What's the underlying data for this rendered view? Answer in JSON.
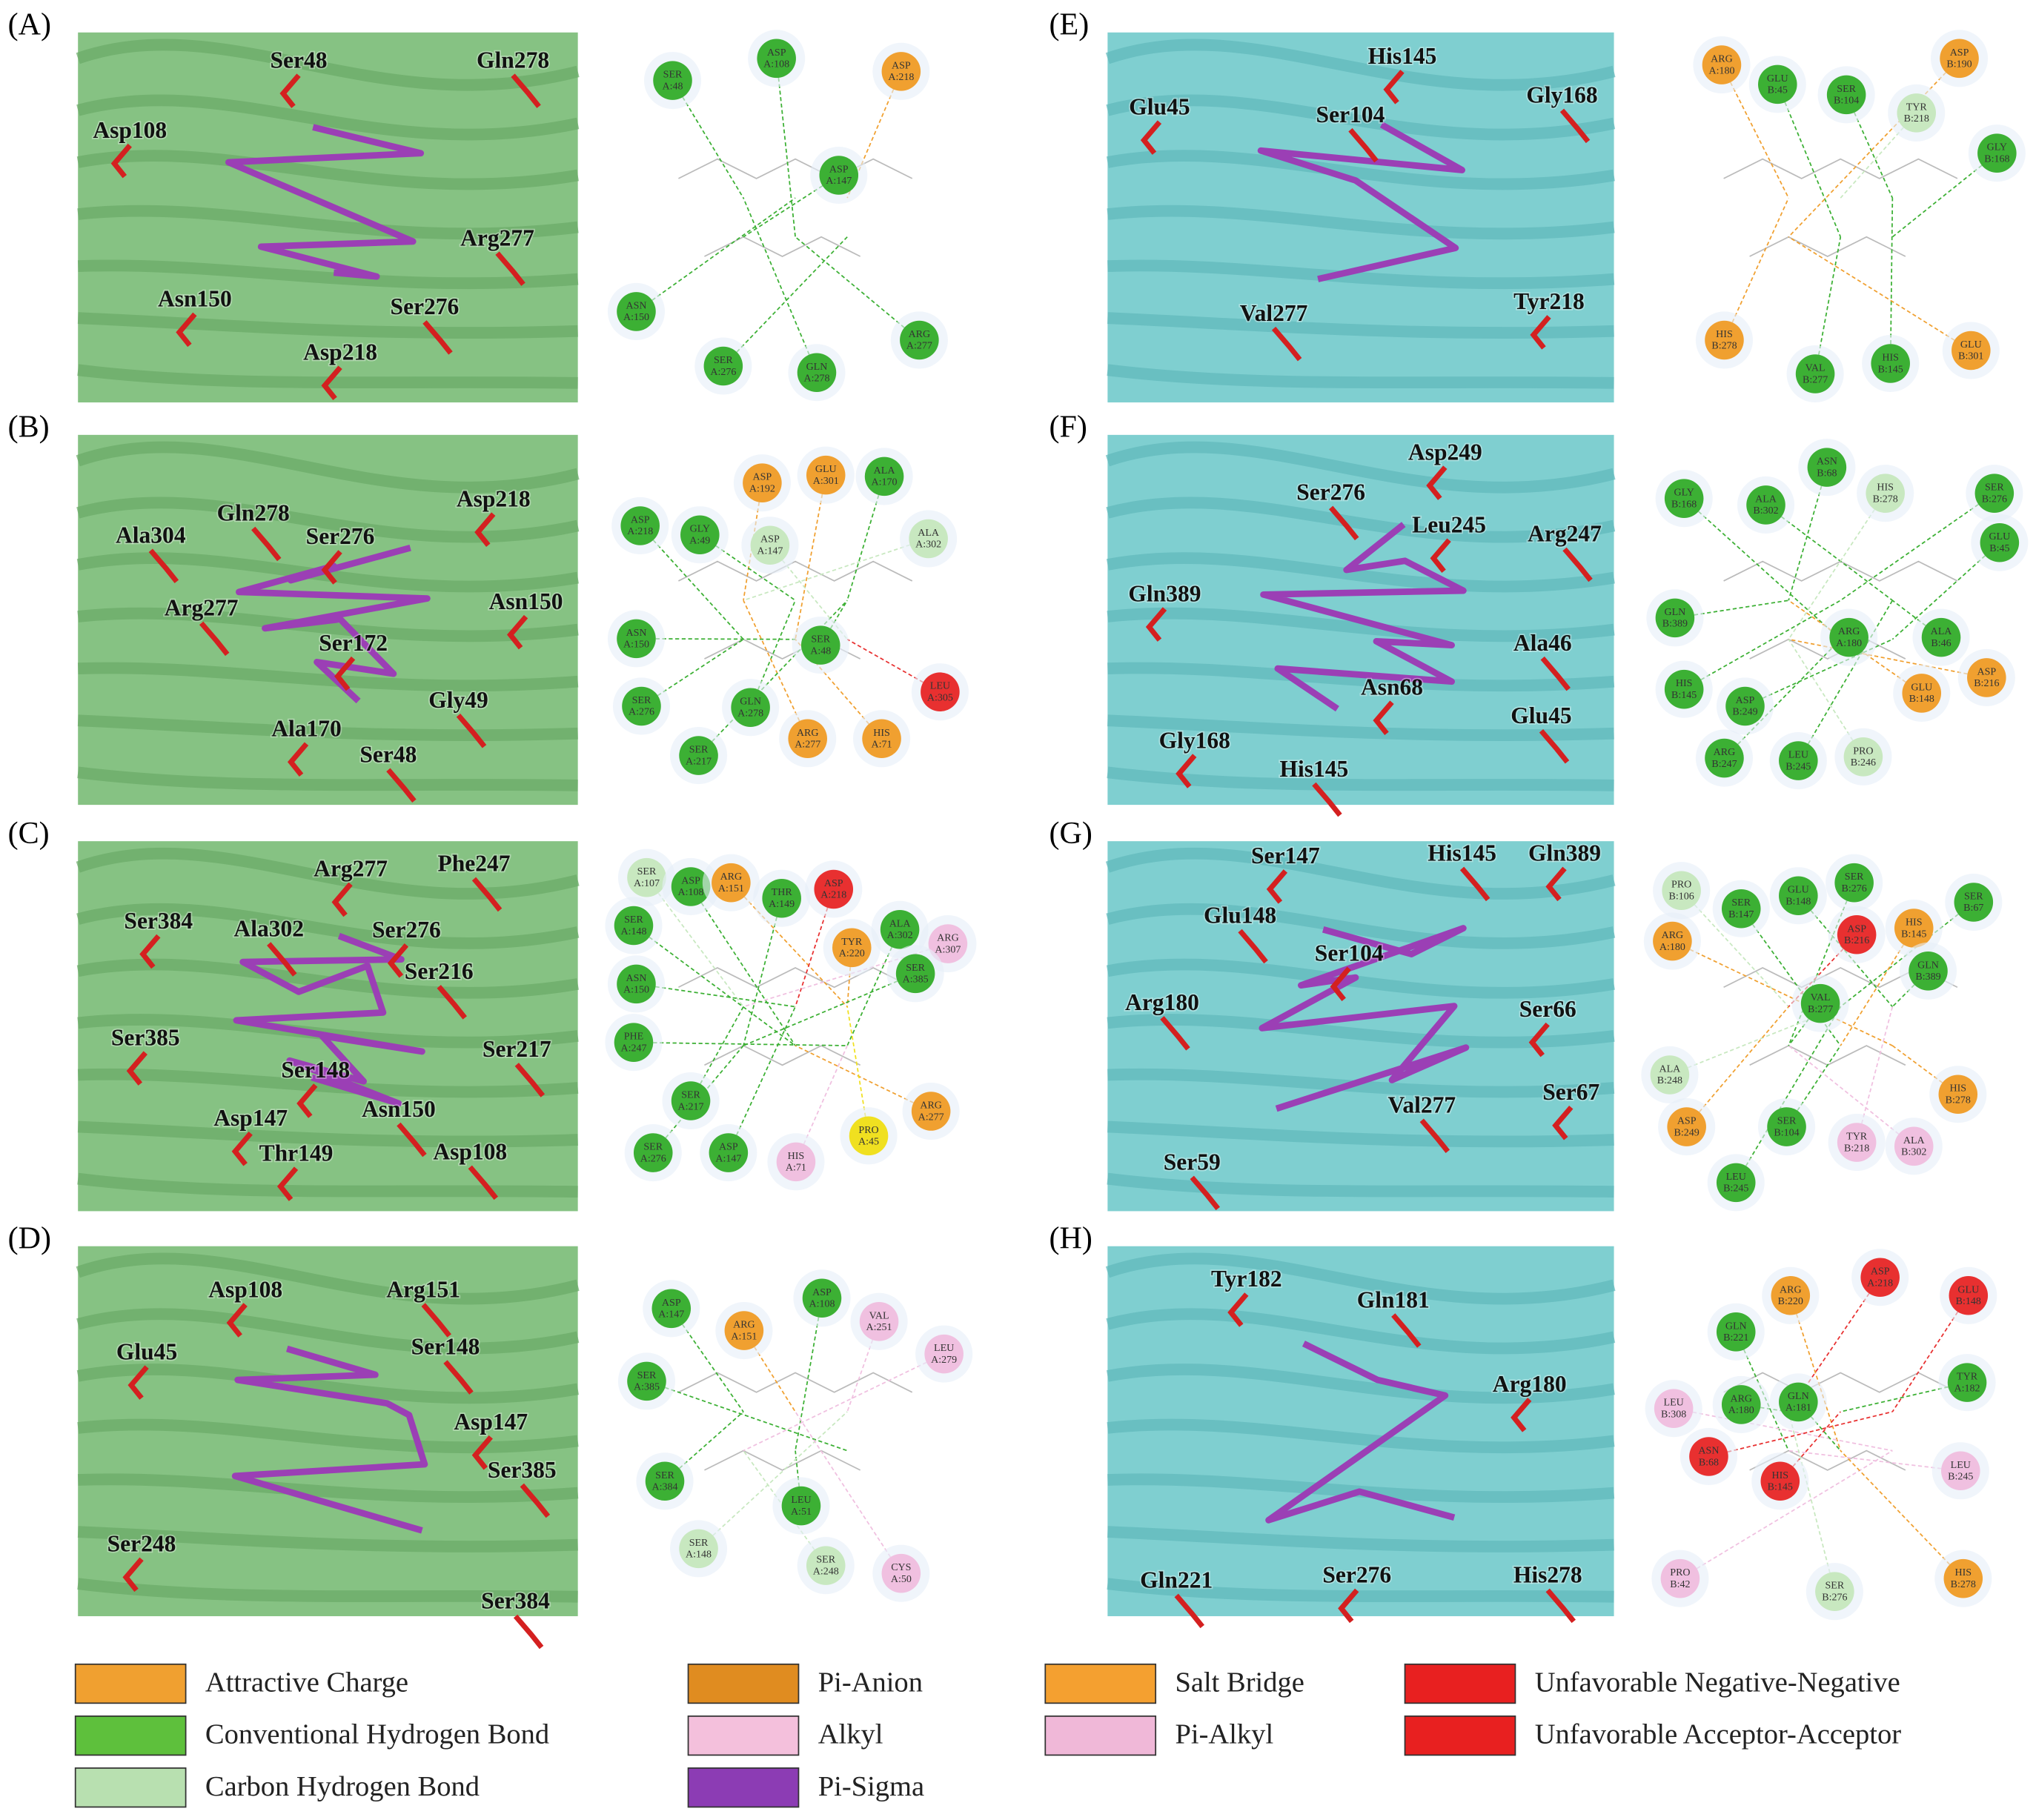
{
  "panels": [
    {
      "label": "(A)",
      "residues": [
        "Ser48",
        "Gln278",
        "Asp108",
        "Arg277",
        "Asn150",
        "Ser276",
        "Asp218"
      ],
      "interactions": [
        {
          "res": "SER",
          "site": "A:48",
          "color": "#3cb034"
        },
        {
          "res": "ASP",
          "site": "A:108",
          "color": "#3cb034"
        },
        {
          "res": "ASP",
          "site": "A:218",
          "color": "#f0a030"
        },
        {
          "res": "ASP",
          "site": "A:147",
          "color": "#3cb034"
        },
        {
          "res": "ASN",
          "site": "A:150",
          "color": "#3cb034"
        },
        {
          "res": "SER",
          "site": "A:276",
          "color": "#3cb034"
        },
        {
          "res": "GLN",
          "site": "A:278",
          "color": "#3cb034"
        },
        {
          "res": "ARG",
          "site": "A:277",
          "color": "#3cb034"
        }
      ]
    },
    {
      "label": "(B)",
      "residues": [
        "Asp218",
        "Gln278",
        "Ser276",
        "Ala304",
        "Asn150",
        "Arg277",
        "Ser172",
        "Gly49",
        "Ala170",
        "Ser48"
      ],
      "interactions": [
        {
          "res": "ASP",
          "site": "A:192",
          "color": "#f0a030"
        },
        {
          "res": "GLU",
          "site": "A:301",
          "color": "#f0a030"
        },
        {
          "res": "ALA",
          "site": "A:170",
          "color": "#3cb034"
        },
        {
          "res": "ASP",
          "site": "A:218",
          "color": "#3cb034"
        },
        {
          "res": "GLY",
          "site": "A:49",
          "color": "#3cb034"
        },
        {
          "res": "ASP",
          "site": "A:147",
          "color": "#c8e8c0"
        },
        {
          "res": "ALA",
          "site": "A:302",
          "color": "#c8e8c0"
        },
        {
          "res": "ASN",
          "site": "A:150",
          "color": "#3cb034"
        },
        {
          "res": "SER",
          "site": "A:48",
          "color": "#3cb034"
        },
        {
          "res": "SER",
          "site": "A:276",
          "color": "#3cb034"
        },
        {
          "res": "GLN",
          "site": "A:278",
          "color": "#3cb034"
        },
        {
          "res": "LEU",
          "site": "A:305",
          "color": "#e83030"
        },
        {
          "res": "ARG",
          "site": "A:277",
          "color": "#f0a030"
        },
        {
          "res": "HIS",
          "site": "A:71",
          "color": "#f0a030"
        },
        {
          "res": "SER",
          "site": "A:217",
          "color": "#3cb034"
        }
      ]
    },
    {
      "label": "(C)",
      "residues": [
        "Arg277",
        "Phe247",
        "Ser384",
        "Ala302",
        "Ser276",
        "Ser216",
        "Ser385",
        "Ser217",
        "Ser148",
        "Asn150",
        "Asp147",
        "Asp108",
        "Thr149"
      ],
      "interactions": [
        {
          "res": "SER",
          "site": "A:107",
          "color": "#c8e8c0"
        },
        {
          "res": "ASP",
          "site": "A:108",
          "color": "#3cb034"
        },
        {
          "res": "ARG",
          "site": "A:151",
          "color": "#f0a030"
        },
        {
          "res": "THR",
          "site": "A:149",
          "color": "#3cb034"
        },
        {
          "res": "ASP",
          "site": "A:218",
          "color": "#e83030"
        },
        {
          "res": "ALA",
          "site": "A:302",
          "color": "#3cb034"
        },
        {
          "res": "ARG",
          "site": "A:307",
          "color": "#f0c0e0"
        },
        {
          "res": "SER",
          "site": "A:148",
          "color": "#3cb034"
        },
        {
          "res": "TYR",
          "site": "A:220",
          "color": "#f0a030"
        },
        {
          "res": "SER",
          "site": "A:385",
          "color": "#3cb034"
        },
        {
          "res": "ASN",
          "site": "A:150",
          "color": "#3cb034"
        },
        {
          "res": "PHE",
          "site": "A:247",
          "color": "#3cb034"
        },
        {
          "res": "SER",
          "site": "A:217",
          "color": "#3cb034"
        },
        {
          "res": "ARG",
          "site": "A:277",
          "color": "#f0a030"
        },
        {
          "res": "PRO",
          "site": "A:45",
          "color": "#f0e020"
        },
        {
          "res": "SER",
          "site": "A:276",
          "color": "#3cb034"
        },
        {
          "res": "ASP",
          "site": "A:147",
          "color": "#3cb034"
        },
        {
          "res": "HIS",
          "site": "A:71",
          "color": "#f0c0e0"
        }
      ]
    },
    {
      "label": "(D)",
      "residues": [
        "Asp108",
        "Arg151",
        "Glu45",
        "Ser148",
        "Asp147",
        "Ser385",
        "Ser248",
        "Ser384"
      ],
      "interactions": [
        {
          "res": "ASP",
          "site": "A:147",
          "color": "#3cb034"
        },
        {
          "res": "ASP",
          "site": "A:108",
          "color": "#3cb034"
        },
        {
          "res": "VAL",
          "site": "A:251",
          "color": "#f0c0e0"
        },
        {
          "res": "LEU",
          "site": "A:279",
          "color": "#f0c0e0"
        },
        {
          "res": "ARG",
          "site": "A:151",
          "color": "#f0a030"
        },
        {
          "res": "SER",
          "site": "A:385",
          "color": "#3cb034"
        },
        {
          "res": "SER",
          "site": "A:384",
          "color": "#3cb034"
        },
        {
          "res": "LEU",
          "site": "A:51",
          "color": "#3cb034"
        },
        {
          "res": "SER",
          "site": "A:148",
          "color": "#c8e8c0"
        },
        {
          "res": "SER",
          "site": "A:248",
          "color": "#c8e8c0"
        },
        {
          "res": "CYS",
          "site": "A:50",
          "color": "#f0c0e0"
        }
      ]
    },
    {
      "label": "(E)",
      "residues": [
        "His145",
        "Gly168",
        "Glu45",
        "Ser104",
        "Tyr218",
        "Val277"
      ],
      "interactions": [
        {
          "res": "ARG",
          "site": "A:180",
          "color": "#f0a030"
        },
        {
          "res": "GLU",
          "site": "B:45",
          "color": "#3cb034"
        },
        {
          "res": "SER",
          "site": "B:104",
          "color": "#3cb034"
        },
        {
          "res": "ASP",
          "site": "B:190",
          "color": "#f0a030"
        },
        {
          "res": "TYR",
          "site": "B:218",
          "color": "#c8e8c0"
        },
        {
          "res": "GLY",
          "site": "B:168",
          "color": "#3cb034"
        },
        {
          "res": "HIS",
          "site": "B:278",
          "color": "#f0a030"
        },
        {
          "res": "VAL",
          "site": "B:277",
          "color": "#3cb034"
        },
        {
          "res": "HIS",
          "site": "B:145",
          "color": "#3cb034"
        },
        {
          "res": "GLU",
          "site": "B:301",
          "color": "#f0a030"
        }
      ]
    },
    {
      "label": "(F)",
      "residues": [
        "Asp249",
        "Ser276",
        "Leu245",
        "Arg247",
        "Gln389",
        "Ala46",
        "Asn68",
        "Glu45",
        "Gly168",
        "His145"
      ],
      "interactions": [
        {
          "res": "ASN",
          "site": "B:68",
          "color": "#3cb034"
        },
        {
          "res": "GLY",
          "site": "B:168",
          "color": "#3cb034"
        },
        {
          "res": "ALA",
          "site": "B:302",
          "color": "#3cb034"
        },
        {
          "res": "HIS",
          "site": "B:278",
          "color": "#c8e8c0"
        },
        {
          "res": "SER",
          "site": "B:276",
          "color": "#3cb034"
        },
        {
          "res": "GLU",
          "site": "B:45",
          "color": "#3cb034"
        },
        {
          "res": "GLN",
          "site": "B:389",
          "color": "#3cb034"
        },
        {
          "res": "ARG",
          "site": "A:180",
          "color": "#3cb034"
        },
        {
          "res": "ALA",
          "site": "B:46",
          "color": "#3cb034"
        },
        {
          "res": "ASP",
          "site": "B:216",
          "color": "#f0a030"
        },
        {
          "res": "HIS",
          "site": "B:145",
          "color": "#3cb034"
        },
        {
          "res": "ASP",
          "site": "B:249",
          "color": "#3cb034"
        },
        {
          "res": "GLU",
          "site": "B:148",
          "color": "#f0a030"
        },
        {
          "res": "ARG",
          "site": "B:247",
          "color": "#3cb034"
        },
        {
          "res": "LEU",
          "site": "B:245",
          "color": "#3cb034"
        },
        {
          "res": "PRO",
          "site": "B:246",
          "color": "#c8e8c0"
        }
      ]
    },
    {
      "label": "(G)",
      "residues": [
        "Ser147",
        "His145",
        "Gln389",
        "Glu148",
        "Ser104",
        "Arg180",
        "Ser66",
        "Val277",
        "Ser67",
        "Ser59"
      ],
      "interactions": [
        {
          "res": "PRO",
          "site": "B:106",
          "color": "#c8e8c0"
        },
        {
          "res": "SER",
          "site": "B:147",
          "color": "#3cb034"
        },
        {
          "res": "GLU",
          "site": "B:148",
          "color": "#3cb034"
        },
        {
          "res": "SER",
          "site": "B:276",
          "color": "#3cb034"
        },
        {
          "res": "SER",
          "site": "B:67",
          "color": "#3cb034"
        },
        {
          "res": "ARG",
          "site": "A:180",
          "color": "#f0a030"
        },
        {
          "res": "ASP",
          "site": "B:216",
          "color": "#e83030"
        },
        {
          "res": "HIS",
          "site": "B:145",
          "color": "#f0a030"
        },
        {
          "res": "GLN",
          "site": "B:389",
          "color": "#3cb034"
        },
        {
          "res": "VAL",
          "site": "B:277",
          "color": "#3cb034"
        },
        {
          "res": "ALA",
          "site": "B:248",
          "color": "#c8e8c0"
        },
        {
          "res": "HIS",
          "site": "B:278",
          "color": "#f0a030"
        },
        {
          "res": "ASP",
          "site": "B:249",
          "color": "#f0a030"
        },
        {
          "res": "SER",
          "site": "B:104",
          "color": "#3cb034"
        },
        {
          "res": "TYR",
          "site": "B:218",
          "color": "#f0c0e0"
        },
        {
          "res": "ALA",
          "site": "B:302",
          "color": "#f0c0e0"
        },
        {
          "res": "LEU",
          "site": "B:245",
          "color": "#3cb034"
        }
      ]
    },
    {
      "label": "(H)",
      "residues": [
        "Tyr182",
        "Gln181",
        "Arg180",
        "Gln221",
        "Ser276",
        "His278"
      ],
      "interactions": [
        {
          "res": "ASP",
          "site": "A:218",
          "color": "#e83030"
        },
        {
          "res": "ARG",
          "site": "B:220",
          "color": "#f0a030"
        },
        {
          "res": "GLU",
          "site": "B:148",
          "color": "#e83030"
        },
        {
          "res": "GLN",
          "site": "B:221",
          "color": "#3cb034"
        },
        {
          "res": "TYR",
          "site": "A:182",
          "color": "#3cb034"
        },
        {
          "res": "LEU",
          "site": "B:308",
          "color": "#f0c0e0"
        },
        {
          "res": "ARG",
          "site": "A:180",
          "color": "#3cb034"
        },
        {
          "res": "GLN",
          "site": "A:181",
          "color": "#3cb034"
        },
        {
          "res": "ASN",
          "site": "B:68",
          "color": "#e83030"
        },
        {
          "res": "LEU",
          "site": "B:245",
          "color": "#f0c0e0"
        },
        {
          "res": "HIS",
          "site": "B:145",
          "color": "#e83030"
        },
        {
          "res": "PRO",
          "site": "B:42",
          "color": "#f0c0e0"
        },
        {
          "res": "SER",
          "site": "B:276",
          "color": "#c8e8c0"
        },
        {
          "res": "HIS",
          "site": "B:278",
          "color": "#f0a030"
        }
      ]
    }
  ],
  "legend": [
    {
      "text": "Attractive Charge",
      "color": "#f0a030"
    },
    {
      "text": "Conventional Hydrogen Bond",
      "color": "#5ec03c"
    },
    {
      "text": "Carbon Hydrogen Bond",
      "color": "#b8e0b0"
    },
    {
      "text": "Pi-Anion",
      "color": "#e08c20"
    },
    {
      "text": "Alkyl",
      "color": "#f4c0dc"
    },
    {
      "text": "Pi-Sigma",
      "color": "#8c3cb4"
    },
    {
      "text": "Salt Bridge",
      "color": "#f4a030"
    },
    {
      "text": "Pi-Alkyl",
      "color": "#f0b8d8"
    },
    {
      "text": "Unfavorable Negative-Negative",
      "color": "#e82020"
    },
    {
      "text": "Unfavorable Acceptor-Acceptor",
      "color": "#e82020"
    }
  ]
}
